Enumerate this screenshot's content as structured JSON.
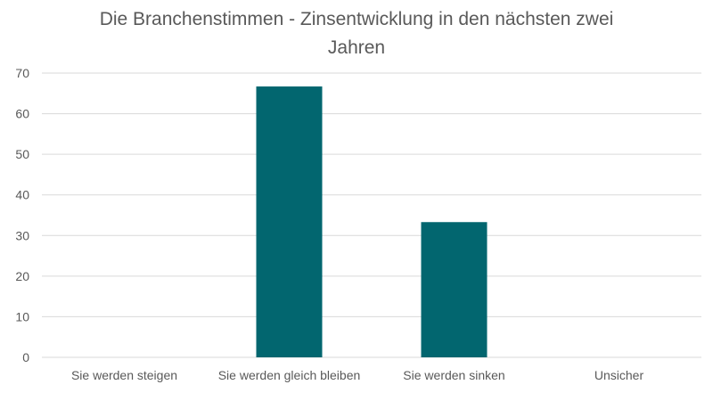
{
  "chart_data": {
    "type": "bar",
    "title_line1": "Die Branchenstimmen - Zinsentwicklung in den nächsten zwei",
    "title_line2": "Jahren",
    "categories": [
      "Sie werden steigen",
      "Sie werden gleich bleiben",
      "Sie werden sinken",
      "Unsicher"
    ],
    "values": [
      0,
      66.7,
      33.3,
      0
    ],
    "ylim": [
      0,
      70
    ],
    "yticks": [
      0,
      10,
      20,
      30,
      40,
      50,
      60,
      70
    ],
    "grid": true,
    "bar_color": "#02666f",
    "grid_color": "#d9d9d9",
    "text_color": "#595959"
  }
}
